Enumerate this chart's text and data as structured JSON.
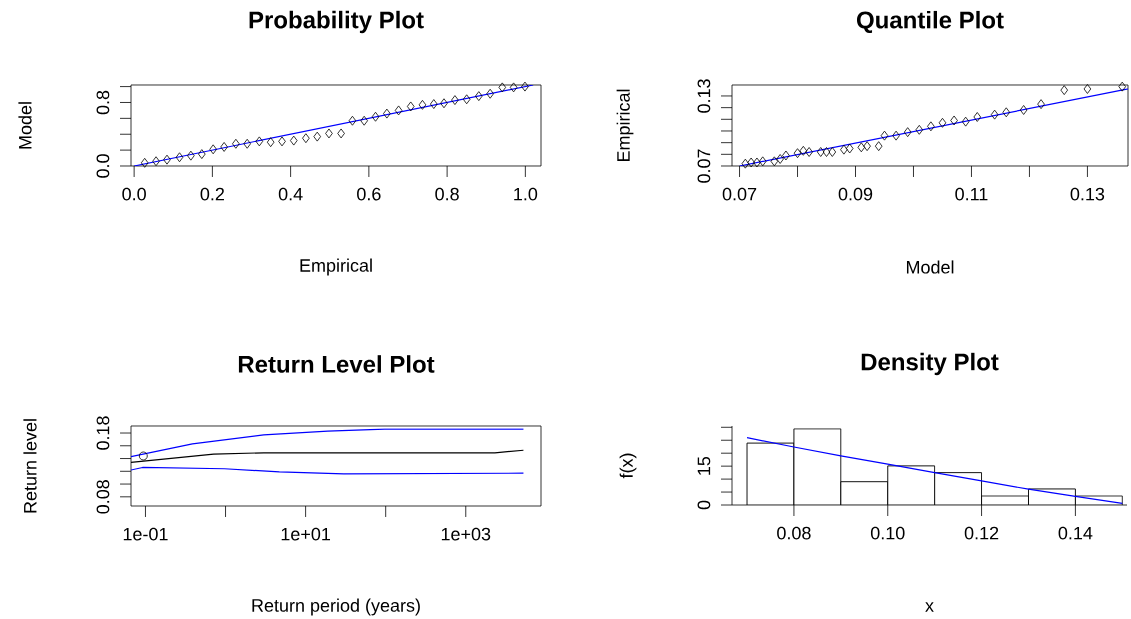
{
  "chart_data": [
    {
      "type": "scatter",
      "title": "Probability Plot",
      "xlabel": "Empirical",
      "ylabel": "Model",
      "xlim": [
        -0.008,
        1.04
      ],
      "ylim": [
        0,
        1.02
      ],
      "xticks": [
        {
          "value": 0,
          "label": "0.0"
        },
        {
          "value": 0.2,
          "label": "0.2"
        },
        {
          "value": 0.4,
          "label": "0.4"
        },
        {
          "value": 0.6,
          "label": "0.6"
        },
        {
          "value": 0.8,
          "label": "0.8"
        },
        {
          "value": 1,
          "label": "1.0"
        }
      ],
      "yticks": [
        {
          "value": 0,
          "label": "0.0"
        },
        {
          "value": 0.2,
          "label": null
        },
        {
          "value": 0.4,
          "label": null
        },
        {
          "value": 0.6,
          "label": null
        },
        {
          "value": 0.8,
          "label": "0.8"
        },
        {
          "value": 1,
          "label": null
        }
      ],
      "series": [
        {
          "type": "scatter",
          "marker": "diamond",
          "color": "#000000",
          "x": [
            0.027,
            0.056,
            0.084,
            0.116,
            0.145,
            0.173,
            0.202,
            0.23,
            0.26,
            0.289,
            0.32,
            0.349,
            0.378,
            0.408,
            0.439,
            0.468,
            0.498,
            0.529,
            0.558,
            0.588,
            0.617,
            0.646,
            0.676,
            0.707,
            0.737,
            0.766,
            0.792,
            0.82,
            0.85,
            0.881,
            0.91,
            0.941,
            0.97,
            0.999
          ],
          "values": [
            0.04,
            0.06,
            0.08,
            0.11,
            0.13,
            0.15,
            0.21,
            0.24,
            0.28,
            0.28,
            0.31,
            0.3,
            0.31,
            0.32,
            0.35,
            0.37,
            0.41,
            0.41,
            0.57,
            0.57,
            0.62,
            0.66,
            0.7,
            0.75,
            0.77,
            0.78,
            0.79,
            0.83,
            0.84,
            0.88,
            0.91,
            0.99,
            0.99,
            1.0
          ]
        },
        {
          "type": "line",
          "color": "#0000ff",
          "x": [
            0,
            1.02
          ],
          "values": [
            0,
            1.02
          ]
        }
      ]
    },
    {
      "type": "scatter",
      "title": "Quantile Plot",
      "xlabel": "Model",
      "ylabel": "Empirical",
      "xlim": [
        0.0687,
        0.137
      ],
      "ylim": [
        0.07,
        0.1394
      ],
      "xticks": [
        0.07,
        {
          "value": 0.08,
          "label": null
        },
        0.09,
        {
          "value": 0.1,
          "label": null
        },
        0.11,
        {
          "value": 0.12,
          "label": null
        },
        0.13
      ],
      "yticks": [
        0.07,
        {
          "value": 0.08,
          "label": null
        },
        {
          "value": 0.09,
          "label": null
        },
        {
          "value": 0.1,
          "label": null
        },
        {
          "value": 0.11,
          "label": null
        },
        {
          "value": 0.12,
          "label": null
        },
        0.13
      ],
      "series": [
        {
          "type": "scatter",
          "marker": "diamond",
          "color": "#000000",
          "x": [
            0.071,
            0.072,
            0.073,
            0.074,
            0.076,
            0.077,
            0.078,
            0.08,
            0.081,
            0.082,
            0.084,
            0.085,
            0.086,
            0.088,
            0.089,
            0.091,
            0.092,
            0.094,
            0.095,
            0.097,
            0.099,
            0.101,
            0.103,
            0.105,
            0.107,
            0.109,
            0.111,
            0.114,
            0.116,
            0.119,
            0.122,
            0.126,
            0.13,
            0.136
          ],
          "values": [
            0.072,
            0.073,
            0.073,
            0.074,
            0.074,
            0.076,
            0.079,
            0.081,
            0.083,
            0.082,
            0.082,
            0.082,
            0.082,
            0.084,
            0.085,
            0.086,
            0.087,
            0.087,
            0.096,
            0.096,
            0.099,
            0.101,
            0.104,
            0.107,
            0.109,
            0.108,
            0.112,
            0.114,
            0.116,
            0.118,
            0.123,
            0.135,
            0.136,
            0.138
          ]
        },
        {
          "type": "line",
          "color": "#0000ff",
          "x": [
            0.07,
            0.137
          ],
          "values": [
            0.07,
            0.136
          ]
        }
      ]
    },
    {
      "type": "line",
      "title": "Return Level Plot",
      "xlabel": "Return period (years)",
      "ylabel": "Return level",
      "log": "x",
      "xlim": [
        0.066,
        8700
      ],
      "ylim": [
        0.0656,
        0.191
      ],
      "xticks": [
        {
          "value": 0.1,
          "label": "1e-01"
        },
        {
          "value": 1,
          "label": null
        },
        {
          "value": 10,
          "label": "1e+01"
        },
        {
          "value": 100,
          "label": null
        },
        {
          "value": 1000,
          "label": "1e+03"
        }
      ],
      "yticks": [
        0.08,
        {
          "value": 0.1,
          "label": null
        },
        {
          "value": 0.12,
          "label": null
        },
        {
          "value": 0.14,
          "label": null
        },
        {
          "value": 0.16,
          "label": null
        },
        0.18
      ],
      "series": [
        {
          "type": "line",
          "color": "#0000ff",
          "x": [
            0.066,
            0.386,
            3.0,
            18.9,
            97,
            5250
          ],
          "values": [
            0.143,
            0.163,
            0.177,
            0.183,
            0.186,
            0.186
          ]
        },
        {
          "type": "line",
          "color": "#000000",
          "x": [
            0.066,
            0.71,
            3.0,
            2310,
            5250
          ],
          "values": [
            0.134,
            0.147,
            0.149,
            0.149,
            0.153
          ]
        },
        {
          "type": "line",
          "color": "#0000ff",
          "x": [
            0.066,
            0.092,
            0.97,
            4.7,
            30,
            5250
          ],
          "values": [
            0.122,
            0.126,
            0.124,
            0.119,
            0.116,
            0.117
          ]
        },
        {
          "type": "scatter",
          "color": "#000000",
          "marker": "circle",
          "x": [
            0.094
          ],
          "values": [
            0.144
          ]
        }
      ]
    },
    {
      "type": "histogram",
      "title": "Density Plot",
      "xlabel": "x",
      "ylabel": "f(x)",
      "color": "#ffffff",
      "xlim": [
        0.0668,
        0.151
      ],
      "ylim": [
        0,
        30.5
      ],
      "xticks": [
        0.08,
        {
          "value": 0.1,
          "label": "0.10"
        },
        0.12,
        0.14
      ],
      "yticks": [
        0,
        {
          "value": 5,
          "label": null
        },
        {
          "value": 10,
          "label": null
        },
        15,
        {
          "value": 20,
          "label": null
        },
        {
          "value": 25,
          "label": null
        },
        {
          "value": 30,
          "label": null
        }
      ],
      "bins": [
        0.07,
        0.08,
        0.09,
        0.1,
        0.11,
        0.12,
        0.13,
        0.14,
        0.15
      ],
      "values": [
        23.9,
        29.4,
        9.0,
        15.1,
        12.5,
        3.5,
        6.2,
        3.5
      ],
      "series": [
        {
          "type": "line",
          "color": "#0000ff",
          "x": [
            0.07,
            0.08,
            0.09,
            0.1,
            0.11,
            0.12,
            0.13,
            0.14,
            0.15
          ],
          "values": [
            26.0,
            22.4,
            19.0,
            15.8,
            12.5,
            9.3,
            6.1,
            3.3,
            0.6
          ]
        }
      ]
    }
  ]
}
